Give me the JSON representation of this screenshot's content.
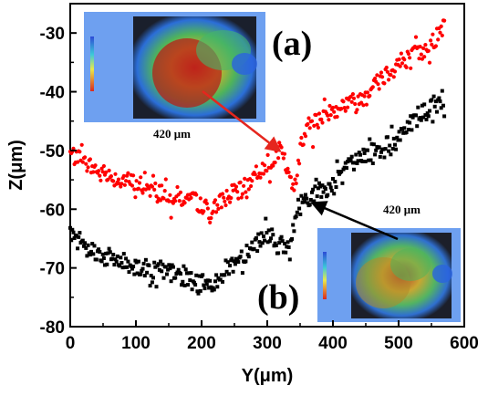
{
  "chart_data": {
    "type": "scatter",
    "xlabel": "Y(μm)",
    "ylabel": "Z(μm)",
    "xlim": [
      0,
      600
    ],
    "ylim": [
      -80,
      -25
    ],
    "x_ticks": [
      "0",
      "100",
      "200",
      "300",
      "400",
      "500",
      "600"
    ],
    "y_ticks": [
      "-30",
      "-40",
      "-50",
      "-60",
      "-70",
      "-80"
    ],
    "grid": false,
    "series": [
      {
        "color": "#ff0000",
        "marker": "circle",
        "anchors": [
          [
            0,
            -50.5
          ],
          [
            20,
            -52
          ],
          [
            50,
            -54
          ],
          [
            80,
            -55
          ],
          [
            110,
            -56
          ],
          [
            140,
            -57
          ],
          [
            170,
            -58
          ],
          [
            200,
            -59
          ],
          [
            215,
            -61
          ],
          [
            230,
            -58
          ],
          [
            260,
            -57
          ],
          [
            290,
            -53
          ],
          [
            320,
            -50
          ],
          [
            335,
            -55
          ],
          [
            345,
            -56
          ],
          [
            350,
            -49
          ],
          [
            360,
            -46
          ],
          [
            380,
            -45
          ],
          [
            400,
            -43
          ],
          [
            420,
            -42
          ],
          [
            440,
            -41.5
          ],
          [
            460,
            -39
          ],
          [
            480,
            -37
          ],
          [
            500,
            -35
          ],
          [
            520,
            -34
          ],
          [
            540,
            -33
          ],
          [
            555,
            -31
          ],
          [
            570,
            -29
          ]
        ]
      },
      {
        "color": "#000000",
        "marker": "square",
        "anchors": [
          [
            0,
            -64.5
          ],
          [
            20,
            -66
          ],
          [
            50,
            -68
          ],
          [
            80,
            -69
          ],
          [
            110,
            -70
          ],
          [
            140,
            -70.5
          ],
          [
            170,
            -71.5
          ],
          [
            200,
            -73
          ],
          [
            215,
            -73
          ],
          [
            230,
            -71
          ],
          [
            250,
            -69
          ],
          [
            270,
            -67
          ],
          [
            300,
            -64
          ],
          [
            315,
            -66
          ],
          [
            335,
            -67
          ],
          [
            345,
            -60
          ],
          [
            360,
            -58
          ],
          [
            380,
            -57
          ],
          [
            400,
            -56
          ],
          [
            430,
            -52
          ],
          [
            460,
            -50
          ],
          [
            490,
            -49
          ],
          [
            510,
            -46
          ],
          [
            530,
            -44
          ],
          [
            550,
            -43
          ],
          [
            570,
            -41
          ]
        ]
      }
    ],
    "annotations": {
      "panel_a": "(a)",
      "panel_b": "(b)",
      "inset_a_scale": "420 μm",
      "inset_b_scale": "420 μm",
      "inset_a_arrow_target": [
        318,
        -50
      ],
      "inset_b_arrow_target": [
        370,
        -59
      ]
    }
  }
}
